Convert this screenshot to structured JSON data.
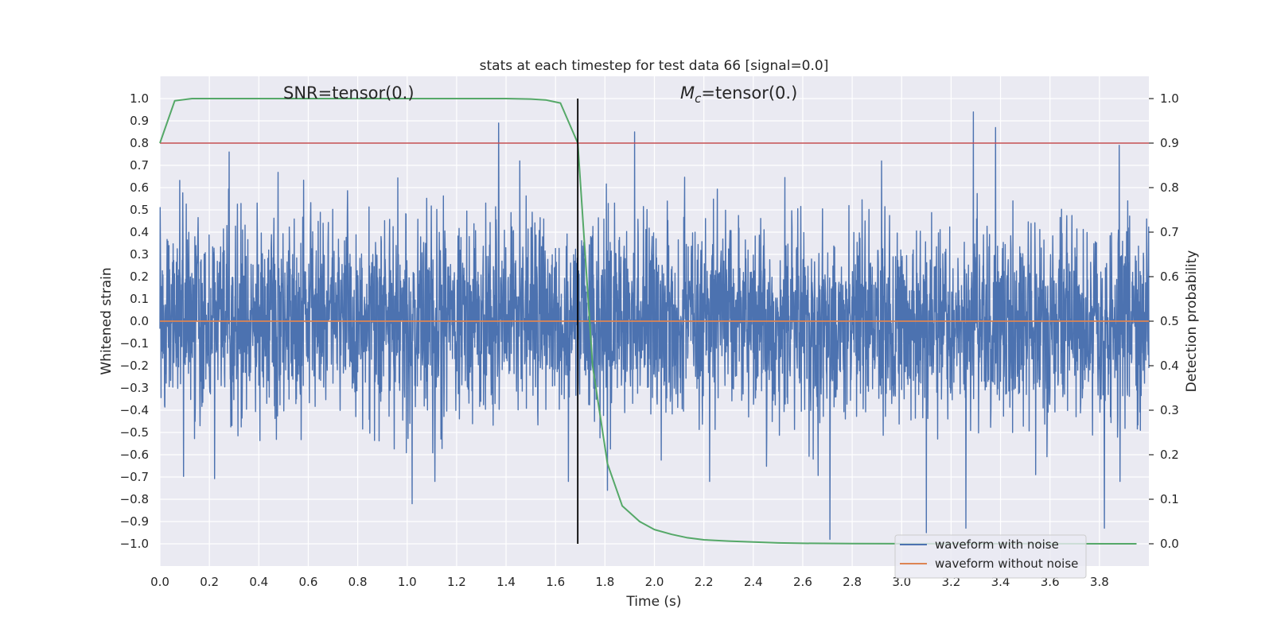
{
  "chart_data": {
    "type": "line",
    "title": "stats at each timestep for test data 66 [signal=0.0]",
    "xlabel": "Time (s)",
    "ylabel": "Whitened strain",
    "y2label": "Detection probability",
    "xlim": [
      0.0,
      4.0
    ],
    "ylim": [
      -1.1,
      1.1
    ],
    "y2lim": [
      -0.05,
      1.05
    ],
    "xticks": [
      0.0,
      0.2,
      0.4,
      0.6,
      0.8,
      1.0,
      1.2,
      1.4,
      1.6,
      1.8,
      2.0,
      2.2,
      2.4,
      2.6,
      2.8,
      3.0,
      3.2,
      3.4,
      3.6,
      3.8
    ],
    "xtick_labels": [
      "0.0",
      "0.2",
      "0.4",
      "0.6",
      "0.8",
      "1.0",
      "1.2",
      "1.4",
      "1.6",
      "1.8",
      "2.0",
      "2.2",
      "2.4",
      "2.6",
      "2.8",
      "3.0",
      "3.2",
      "3.4",
      "3.6",
      "3.8"
    ],
    "yticks": [
      1.0,
      0.9,
      0.8,
      0.7,
      0.6,
      0.5,
      0.4,
      0.3,
      0.2,
      0.1,
      0.0,
      -0.1,
      -0.2,
      -0.3,
      -0.4,
      -0.5,
      -0.6,
      -0.7,
      -0.8,
      -0.9,
      -1.0
    ],
    "ytick_labels": [
      "1.0",
      "0.9",
      "0.8",
      "0.7",
      "0.6",
      "0.5",
      "0.4",
      "0.3",
      "0.2",
      "0.1",
      "0.0",
      "−0.1",
      "−0.2",
      "−0.3",
      "−0.4",
      "−0.5",
      "−0.6",
      "−0.7",
      "−0.8",
      "−0.9",
      "−1.0"
    ],
    "y2ticks": [
      1.0,
      0.9,
      0.8,
      0.7,
      0.6,
      0.5,
      0.4,
      0.3,
      0.2,
      0.1,
      0.0
    ],
    "y2tick_labels": [
      "1.0",
      "0.9",
      "0.8",
      "0.7",
      "0.6",
      "0.5",
      "0.4",
      "0.3",
      "0.2",
      "0.1",
      "0.0"
    ],
    "grid": true,
    "legend": {
      "placement": "lower-right",
      "entries": [
        "waveform with noise",
        "waveform without noise"
      ]
    },
    "annotations": {
      "snr_text": "SNR=tensor(0.)",
      "mc_symbol": "M",
      "mc_subscript": "c",
      "mc_value": "=tensor(0.)"
    },
    "series": [
      {
        "name": "waveform with noise",
        "axis": "left",
        "color": "#4c72b0",
        "kind": "noise",
        "duration_s": 4.0,
        "sample_rate_hz": 2048,
        "noise_sigma_approx": 0.22,
        "peaks": [
          {
            "x": 0.28,
            "y": 0.76
          },
          {
            "x": 1.37,
            "y": 0.89
          },
          {
            "x": 1.92,
            "y": 0.85
          },
          {
            "x": 3.29,
            "y": 0.94
          },
          {
            "x": 3.38,
            "y": 0.87
          },
          {
            "x": 3.88,
            "y": 0.79
          },
          {
            "x": 1.02,
            "y": -0.82
          },
          {
            "x": 1.81,
            "y": -0.76
          },
          {
            "x": 2.71,
            "y": -0.98
          },
          {
            "x": 3.1,
            "y": -0.95
          },
          {
            "x": 3.26,
            "y": -0.93
          },
          {
            "x": 3.82,
            "y": -0.93
          }
        ]
      },
      {
        "name": "waveform without noise",
        "axis": "left",
        "color": "#dd8452",
        "x": [
          0.0,
          4.0
        ],
        "y": [
          0.0,
          0.0
        ]
      },
      {
        "axis": "right",
        "color": "#55a868",
        "x": [
          0.0,
          0.06,
          0.13,
          0.2,
          0.4,
          0.6,
          0.8,
          1.0,
          1.2,
          1.4,
          1.5,
          1.56,
          1.62,
          1.69,
          1.75,
          1.81,
          1.87,
          1.94,
          2.0,
          2.07,
          2.13,
          2.2,
          2.3,
          2.4,
          2.5,
          2.6,
          2.8,
          3.0,
          3.5,
          3.95
        ],
        "y": [
          0.9,
          0.995,
          1.0,
          1.0,
          1.0,
          1.0,
          1.0,
          1.0,
          1.0,
          1.0,
          0.999,
          0.997,
          0.99,
          0.9,
          0.4,
          0.18,
          0.085,
          0.05,
          0.032,
          0.021,
          0.014,
          0.009,
          0.006,
          0.004,
          0.002,
          0.001,
          0.0005,
          0.0002,
          0.0001,
          0.0
        ]
      },
      {
        "axis": "right",
        "kind": "threshold",
        "color": "#c44e52",
        "y": 0.9
      }
    ],
    "vline": {
      "x": 1.69,
      "color": "#000000"
    }
  }
}
